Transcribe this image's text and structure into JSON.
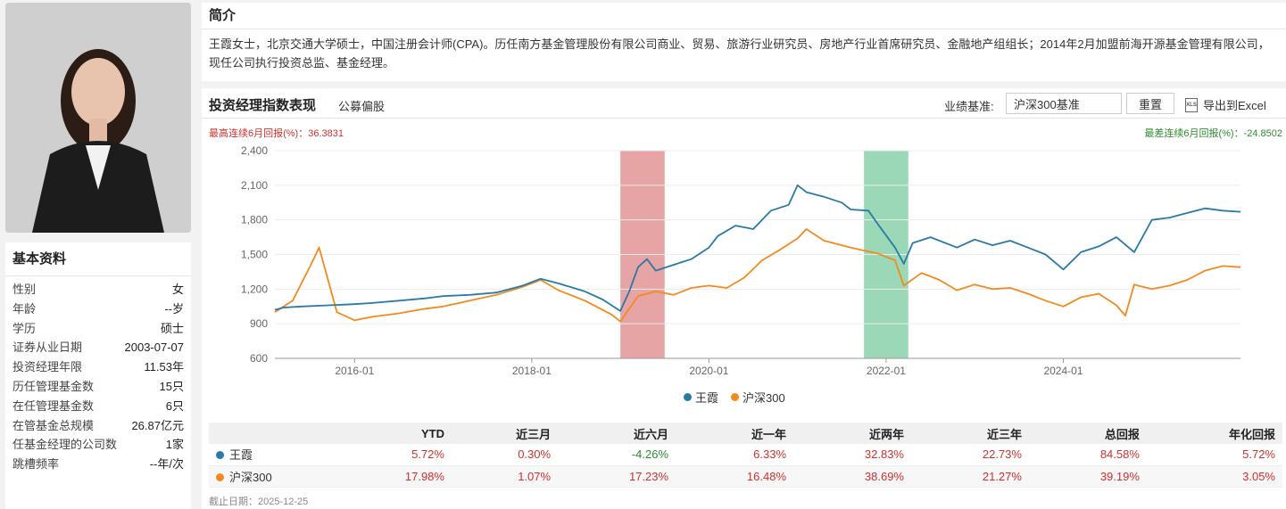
{
  "basic": {
    "title": "基本资料",
    "rows": [
      {
        "k": "性别",
        "v": "女"
      },
      {
        "k": "年龄",
        "v": "--岁"
      },
      {
        "k": "学历",
        "v": "硕士"
      },
      {
        "k": "证券从业日期",
        "v": "2003-07-07"
      },
      {
        "k": "投资经理年限",
        "v": "11.53年"
      },
      {
        "k": "历任管理基金数",
        "v": "15只"
      },
      {
        "k": "在任管理基金数",
        "v": "6只"
      },
      {
        "k": "在管基金总规模",
        "v": "26.87亿元"
      },
      {
        "k": "任基金经理的公司数",
        "v": "1家"
      },
      {
        "k": "跳槽频率",
        "v": "--年/次"
      }
    ]
  },
  "intro": {
    "title": "简介",
    "text": "王霞女士，北京交通大学硕士，中国注册会计师(CPA)。历任南方基金管理股份有限公司商业、贸易、旅游行业研究员、房地产行业首席研究员、金融地产组组长；2014年2月加盟前海开源基金管理有限公司，现任公司执行投资总监、基金经理。"
  },
  "perf": {
    "title": "投资经理指数表现",
    "subtitle": "公募偏股",
    "bench_label": "业绩基准:",
    "bench_value": "沪深300基准",
    "reset_label": "重置",
    "export_label": "导出到Excel",
    "export_icon": "xls-icon",
    "max_stat": "最高连续6月回报(%)：36.3831",
    "min_stat": "最差连续6月回报(%)：-24.8502"
  },
  "chart_data": {
    "type": "line",
    "ylim": [
      600,
      2400
    ],
    "yticks": [
      600,
      900,
      1200,
      1500,
      1800,
      2100,
      2400
    ],
    "ytick_labels": [
      "600",
      "900",
      "1,200",
      "1,500",
      "1,800",
      "2,100",
      "2,400"
    ],
    "xlim": [
      2015.1,
      2026.0
    ],
    "xticks": [
      2016.0,
      2018.0,
      2020.0,
      2022.0,
      2024.0
    ],
    "xtick_labels": [
      "2016-01",
      "2018-01",
      "2020-01",
      "2022-01",
      "2024-01"
    ],
    "highlights": [
      {
        "from": 2019.0,
        "to": 2019.5,
        "color": "#e39a9a"
      },
      {
        "from": 2021.75,
        "to": 2022.25,
        "color": "#8fd4b0"
      }
    ],
    "series": [
      {
        "name": "王霞",
        "color": "#2a7aa6",
        "x": [
          2015.1,
          2015.2,
          2015.4,
          2015.7,
          2016.0,
          2016.2,
          2016.5,
          2016.8,
          2017.0,
          2017.3,
          2017.6,
          2017.9,
          2018.1,
          2018.3,
          2018.6,
          2018.8,
          2019.0,
          2019.1,
          2019.2,
          2019.3,
          2019.4,
          2019.6,
          2019.8,
          2020.0,
          2020.1,
          2020.3,
          2020.5,
          2020.7,
          2020.9,
          2021.0,
          2021.1,
          2021.3,
          2021.5,
          2021.6,
          2021.8,
          2021.9,
          2022.1,
          2022.2,
          2022.3,
          2022.5,
          2022.8,
          2023.0,
          2023.2,
          2023.4,
          2023.6,
          2023.8,
          2024.0,
          2024.2,
          2024.4,
          2024.6,
          2024.8,
          2025.0,
          2025.2,
          2025.4,
          2025.6,
          2025.8,
          2026.0
        ],
        "y": [
          1020,
          1040,
          1050,
          1060,
          1070,
          1080,
          1100,
          1120,
          1140,
          1150,
          1170,
          1230,
          1290,
          1250,
          1180,
          1110,
          1010,
          1180,
          1390,
          1460,
          1360,
          1410,
          1460,
          1560,
          1660,
          1750,
          1720,
          1880,
          1930,
          2100,
          2040,
          2000,
          1950,
          1890,
          1880,
          1770,
          1560,
          1420,
          1600,
          1650,
          1560,
          1630,
          1580,
          1620,
          1560,
          1500,
          1370,
          1520,
          1570,
          1650,
          1520,
          1800,
          1820,
          1860,
          1900,
          1880,
          1870
        ]
      },
      {
        "name": "沪深300",
        "color": "#f28a1e",
        "x": [
          2015.1,
          2015.3,
          2015.5,
          2015.6,
          2015.8,
          2016.0,
          2016.2,
          2016.5,
          2016.8,
          2017.0,
          2017.3,
          2017.6,
          2017.9,
          2018.1,
          2018.3,
          2018.6,
          2018.9,
          2019.0,
          2019.2,
          2019.4,
          2019.6,
          2019.8,
          2020.0,
          2020.2,
          2020.4,
          2020.6,
          2020.8,
          2021.0,
          2021.1,
          2021.3,
          2021.6,
          2021.9,
          2022.1,
          2022.2,
          2022.4,
          2022.6,
          2022.8,
          2023.0,
          2023.2,
          2023.4,
          2023.6,
          2023.8,
          2024.0,
          2024.2,
          2024.4,
          2024.6,
          2024.7,
          2024.8,
          2025.0,
          2025.2,
          2025.4,
          2025.6,
          2025.8,
          2026.0
        ],
        "y": [
          1000,
          1100,
          1400,
          1560,
          1000,
          930,
          960,
          990,
          1030,
          1050,
          1100,
          1150,
          1220,
          1280,
          1190,
          1100,
          980,
          920,
          1140,
          1180,
          1150,
          1210,
          1230,
          1210,
          1300,
          1450,
          1540,
          1640,
          1720,
          1620,
          1560,
          1510,
          1450,
          1230,
          1340,
          1280,
          1190,
          1240,
          1200,
          1210,
          1160,
          1100,
          1050,
          1130,
          1160,
          1060,
          970,
          1240,
          1200,
          1230,
          1280,
          1360,
          1400,
          1390
        ]
      }
    ]
  },
  "table": {
    "headers": [
      "",
      "YTD",
      "近三月",
      "近六月",
      "近一年",
      "近两年",
      "近三年",
      "总回报",
      "年化回报"
    ],
    "rows": [
      {
        "name": "王霞",
        "color": "#2a7aa6",
        "values": [
          "5.72%",
          "0.30%",
          "-4.26%",
          "6.33%",
          "32.83%",
          "22.73%",
          "84.58%",
          "5.72%"
        ]
      },
      {
        "name": "沪深300",
        "color": "#f28a1e",
        "values": [
          "17.98%",
          "1.07%",
          "17.23%",
          "16.48%",
          "38.69%",
          "21.27%",
          "39.19%",
          "3.05%"
        ]
      }
    ]
  },
  "footer": "截止日期：2025-12-25"
}
